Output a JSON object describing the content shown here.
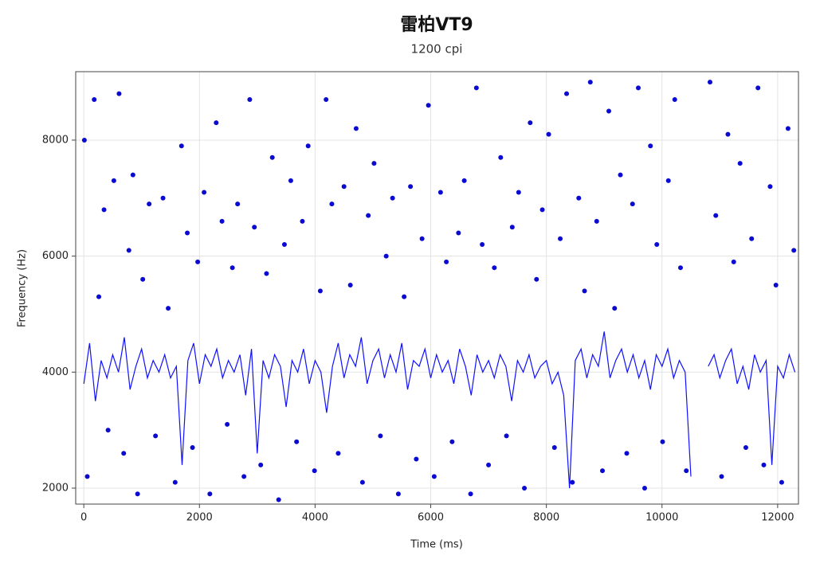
{
  "chart_data": {
    "type": "scatter",
    "title": "雷柏VT9",
    "subtitle": "1200 cpi",
    "x_label": "Time (ms)",
    "y_label": "Frequency (Hz)",
    "xlim": [
      -140,
      12360
    ],
    "xticks": [
      0,
      2000,
      4000,
      6000,
      8000,
      10000,
      12000
    ],
    "ylim": [
      1725,
      9180
    ],
    "yticks": [
      2000,
      4000,
      6000,
      8000
    ],
    "grid": true,
    "series": [
      {
        "type": "line",
        "color": "#1010ff",
        "x": [
          0,
          100,
          200,
          300,
          400,
          500,
          600,
          700,
          800,
          900,
          1000,
          1100,
          1200,
          1300,
          1400,
          1500,
          1600,
          1700,
          1800,
          1900,
          2000,
          2100,
          2200,
          2300,
          2400,
          2500,
          2600,
          2700,
          2800,
          2900,
          3000,
          3100,
          3200,
          3300,
          3400,
          3500,
          3600,
          3700,
          3800,
          3900,
          4000,
          4100,
          4200,
          4300,
          4400,
          4500,
          4600,
          4700,
          4800,
          4900,
          5000,
          5100,
          5200,
          5300,
          5400,
          5500,
          5600,
          5700,
          5800,
          5900,
          6000,
          6100,
          6200,
          6300,
          6400,
          6500,
          6600,
          6700,
          6800,
          6900,
          7000,
          7100,
          7200,
          7300,
          7400,
          7500,
          7600,
          7700,
          7800,
          7900,
          8000,
          8100,
          8200,
          8300,
          8400,
          8500,
          8600,
          8700,
          8800,
          8900,
          9000,
          9100,
          9200,
          9300,
          9400,
          9500,
          9600,
          9700,
          9800,
          9900,
          10000,
          10100,
          10200,
          10300,
          10400,
          10500,
          10600,
          10700,
          10800,
          10900,
          11000,
          11100,
          11200,
          11300,
          11400,
          11500,
          11600,
          11700,
          11800,
          11900,
          12000,
          12100,
          12200,
          12300
        ],
        "values": [
          3800,
          4500,
          3500,
          4200,
          3900,
          4300,
          4000,
          4600,
          3700,
          4100,
          4400,
          3900,
          4200,
          4000,
          4300,
          3900,
          4100,
          2400,
          4200,
          4500,
          3800,
          4300,
          4100,
          4400,
          3900,
          4200,
          4000,
          4300,
          3600,
          4400,
          2600,
          4200,
          3900,
          4300,
          4100,
          3400,
          4200,
          4000,
          4400,
          3800,
          4200,
          4000,
          3300,
          4100,
          4500,
          3900,
          4300,
          4100,
          4600,
          3800,
          4200,
          4400,
          3900,
          4300,
          4000,
          4500,
          3700,
          4200,
          4100,
          4400,
          3900,
          4300,
          4000,
          4200,
          3800,
          4400,
          4100,
          3600,
          4300,
          4000,
          4200,
          3900,
          4300,
          4100,
          3500,
          4200,
          4000,
          4300,
          3900,
          4100,
          4200,
          3800,
          4000,
          3600,
          2000,
          4200,
          4400,
          3900,
          4300,
          4100,
          4700,
          3900,
          4200,
          4400,
          4000,
          4300,
          3900,
          4200,
          3700,
          4300,
          4100,
          4400,
          3900,
          4200,
          4000,
          2200,
          null,
          null,
          4100,
          4300,
          3900,
          4200,
          4400,
          3800,
          4100,
          3700,
          4300,
          4000,
          4200,
          2400,
          4100,
          3900,
          4300,
          4000
        ]
      },
      {
        "type": "scatter",
        "color": "#0a0ad0",
        "x": [
          10,
          60,
          180,
          260,
          350,
          420,
          520,
          610,
          690,
          780,
          850,
          930,
          1020,
          1130,
          1240,
          1370,
          1460,
          1580,
          1690,
          1790,
          1880,
          1970,
          2080,
          2180,
          2290,
          2390,
          2480,
          2570,
          2660,
          2770,
          2870,
          2950,
          3060,
          3160,
          3260,
          3370,
          3470,
          3580,
          3680,
          3780,
          3880,
          3990,
          4090,
          4190,
          4290,
          4400,
          4500,
          4610,
          4710,
          4820,
          4920,
          5020,
          5130,
          5230,
          5340,
          5440,
          5540,
          5650,
          5750,
          5850,
          5960,
          6060,
          6170,
          6270,
          6370,
          6480,
          6580,
          6690,
          6790,
          6890,
          7000,
          7100,
          7210,
          7310,
          7410,
          7520,
          7620,
          7720,
          7830,
          7930,
          8040,
          8140,
          8240,
          8350,
          8450,
          8560,
          8660,
          8760,
          8870,
          8970,
          9080,
          9180,
          9280,
          9390,
          9490,
          9590,
          9700,
          9800,
          9910,
          10010,
          10110,
          10220,
          10320,
          10420,
          10830,
          10930,
          11030,
          11140,
          11240,
          11350,
          11450,
          11550,
          11660,
          11760,
          11870,
          11970,
          12070,
          12180,
          12280
        ],
        "values": [
          8000,
          2200,
          8700,
          5300,
          6800,
          3000,
          7300,
          8800,
          2600,
          6100,
          7400,
          1900,
          5600,
          6900,
          2900,
          7000,
          5100,
          2100,
          7900,
          6400,
          2700,
          5900,
          7100,
          1900,
          8300,
          6600,
          3100,
          5800,
          6900,
          2200,
          8700,
          6500,
          2400,
          5700,
          7700,
          1800,
          6200,
          7300,
          2800,
          6600,
          7900,
          2300,
          5400,
          8700,
          6900,
          2600,
          7200,
          5500,
          8200,
          2100,
          6700,
          7600,
          2900,
          6000,
          7000,
          1900,
          5300,
          7200,
          2500,
          6300,
          8600,
          2200,
          7100,
          5900,
          2800,
          6400,
          7300,
          1900,
          8900,
          6200,
          2400,
          5800,
          7700,
          2900,
          6500,
          7100,
          2000,
          8300,
          5600,
          6800,
          8100,
          2700,
          6300,
          8800,
          2100,
          7000,
          5400,
          9000,
          6600,
          2300,
          8500,
          5100,
          7400,
          2600,
          6900,
          8900,
          2000,
          7900,
          6200,
          2800,
          7300,
          8700,
          5800,
          2300,
          9000,
          6700,
          2200,
          8100,
          5900,
          7600,
          2700,
          6300,
          8900,
          2400,
          7200,
          5500,
          2100,
          8200,
          6100
        ]
      }
    ]
  }
}
